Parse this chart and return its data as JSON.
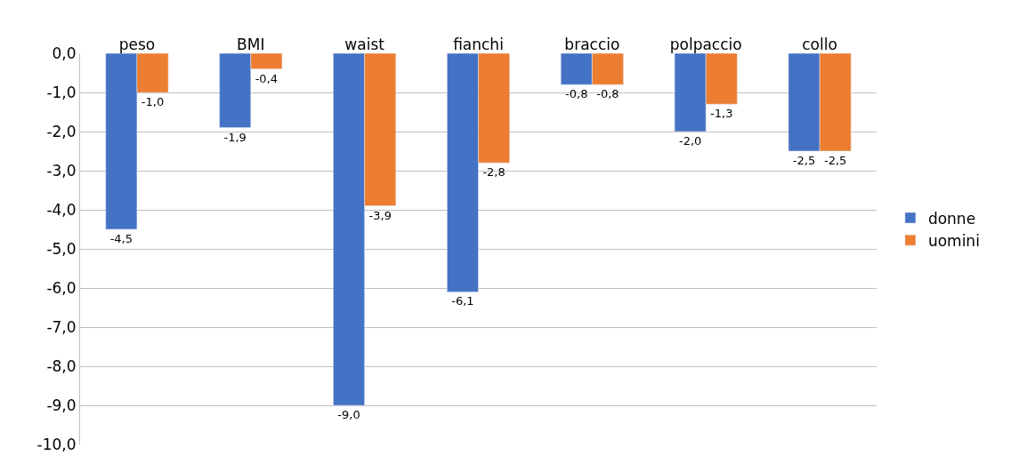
{
  "chart_data": {
    "type": "bar",
    "categories": [
      "peso",
      "BMI",
      "waist",
      "fianchi",
      "braccio",
      "polpaccio",
      "collo"
    ],
    "series": [
      {
        "name": "donne",
        "color": "#4472c4",
        "values": [
          -4.5,
          -1.9,
          -9.0,
          -6.1,
          -0.8,
          -2.0,
          -2.5
        ],
        "value_labels": [
          "-4,5",
          "-1,9",
          "-9,0",
          "-6,1",
          "-0,8",
          "-2,0",
          "-2,5"
        ]
      },
      {
        "name": "uomini",
        "color": "#ed7d31",
        "values": [
          -1.0,
          -0.4,
          -3.9,
          -2.8,
          -0.8,
          -1.3,
          -2.5
        ],
        "value_labels": [
          "-1,0",
          "-0,4",
          "-3,9",
          "-2,8",
          "-0,8",
          "-1,3",
          "-2,5"
        ]
      }
    ],
    "ylim": [
      -10,
      0
    ],
    "yticks": [
      {
        "value": 0,
        "label": "0,0"
      },
      {
        "value": -1,
        "label": "-1,0"
      },
      {
        "value": -2,
        "label": "-2,0"
      },
      {
        "value": -3,
        "label": "-3,0"
      },
      {
        "value": -4,
        "label": "-4,0"
      },
      {
        "value": -5,
        "label": "-5,0"
      },
      {
        "value": -6,
        "label": "-6,0"
      },
      {
        "value": -7,
        "label": "-7,0"
      },
      {
        "value": -8,
        "label": "-8,0"
      },
      {
        "value": -9,
        "label": "-9,0"
      },
      {
        "value": -10,
        "label": "-10,0"
      }
    ],
    "grid": "y",
    "legend": "right"
  }
}
